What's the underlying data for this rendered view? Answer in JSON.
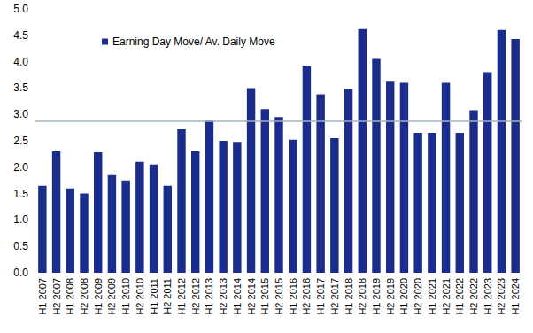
{
  "chart_data": {
    "type": "bar",
    "categories": [
      "H1 2007",
      "H2 2007",
      "H1 2008",
      "H2 2008",
      "H1 2009",
      "H2 2009",
      "H1 2010",
      "H2 2010",
      "H1 2011",
      "H2 2011",
      "H1 2012",
      "H2 2012",
      "H1 2013",
      "H2 2013",
      "H1 2014",
      "H2 2014",
      "H1 2015",
      "H2 2015",
      "H1 2016",
      "H2 2016",
      "H1 2017",
      "H2 2017",
      "H1 2018",
      "H2 2018",
      "H1 2019",
      "H2 2019",
      "H1 2020",
      "H2 2020",
      "H1 2021",
      "H2 2021",
      "H1 2022",
      "H2 2022",
      "H1 2023",
      "H2 2023",
      "H1 2024"
    ],
    "series": [
      {
        "name": "Earning Day Move/ Av. Daily Move",
        "color": "#1a2d8c",
        "values": [
          1.65,
          2.3,
          1.6,
          1.5,
          2.28,
          1.85,
          1.75,
          2.1,
          2.05,
          1.65,
          2.72,
          2.3,
          2.88,
          2.5,
          2.48,
          3.5,
          3.1,
          2.95,
          2.52,
          3.92,
          3.38,
          2.55,
          3.48,
          4.62,
          4.05,
          3.62,
          3.6,
          2.65,
          2.65,
          3.6,
          2.65,
          3.08,
          3.8,
          4.6,
          4.43
        ]
      }
    ],
    "average_line": 2.87,
    "average_line_color": "#a6b0bd",
    "ylim": [
      0,
      5
    ],
    "yticks": [
      {
        "value": 0,
        "label": "0.0"
      },
      0.5,
      {
        "value": 1,
        "label": "1.0"
      },
      1.5,
      {
        "value": 2,
        "label": "2.0"
      },
      2.5,
      {
        "value": 3,
        "label": "3.0"
      },
      3.5,
      {
        "value": 4,
        "label": "4.0"
      },
      4.5,
      {
        "value": 5,
        "label": "5.0"
      }
    ],
    "grid": false,
    "legend": "top-left"
  }
}
